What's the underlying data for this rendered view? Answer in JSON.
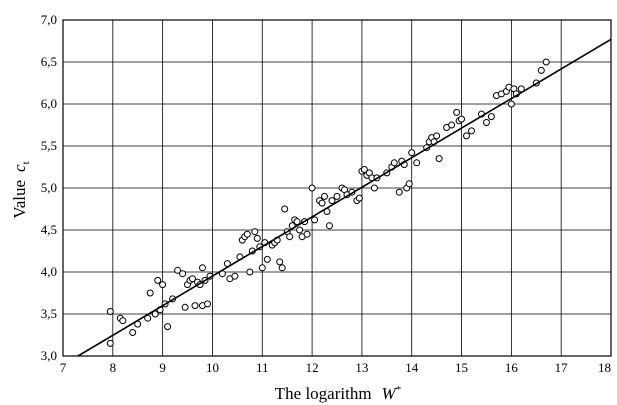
{
  "chart_data": {
    "type": "scatter",
    "title": "",
    "xlabel": "The logarithm",
    "xlabel_symbol": "W",
    "xlabel_sub": "*",
    "ylabel": "Value",
    "ylabel_symbol": "c",
    "ylabel_sub": "t",
    "xlim": [
      7,
      18
    ],
    "ylim": [
      3.0,
      7.0
    ],
    "xticks": [
      "7",
      "8",
      "9",
      "10",
      "11",
      "12",
      "13",
      "14",
      "15",
      "16",
      "17",
      "18"
    ],
    "yticks": [
      "3,0",
      "3,5",
      "4,0",
      "4,5",
      "5,0",
      "5,5",
      "6,0",
      "6,5",
      "7,0"
    ],
    "grid": true,
    "legend": "none",
    "marker": "open-circle",
    "fit_line": {
      "x": [
        7.3,
        18.0
      ],
      "y": [
        3.0,
        6.77
      ]
    },
    "series": [
      {
        "points": [
          [
            7.95,
            3.53
          ],
          [
            7.95,
            3.15
          ],
          [
            8.15,
            3.45
          ],
          [
            8.2,
            3.42
          ],
          [
            8.4,
            3.28
          ],
          [
            8.5,
            3.38
          ],
          [
            8.7,
            3.45
          ],
          [
            8.75,
            3.75
          ],
          [
            8.85,
            3.5
          ],
          [
            8.9,
            3.9
          ],
          [
            8.95,
            3.55
          ],
          [
            9.0,
            3.85
          ],
          [
            9.05,
            3.62
          ],
          [
            9.1,
            3.35
          ],
          [
            9.2,
            3.68
          ],
          [
            9.3,
            4.02
          ],
          [
            9.4,
            3.98
          ],
          [
            9.45,
            3.58
          ],
          [
            9.5,
            3.85
          ],
          [
            9.55,
            3.9
          ],
          [
            9.6,
            3.92
          ],
          [
            9.65,
            3.6
          ],
          [
            9.7,
            3.88
          ],
          [
            9.75,
            3.85
          ],
          [
            9.8,
            4.05
          ],
          [
            9.8,
            3.6
          ],
          [
            9.85,
            3.9
          ],
          [
            9.9,
            3.62
          ],
          [
            9.95,
            3.95
          ],
          [
            10.2,
            3.98
          ],
          [
            10.3,
            4.1
          ],
          [
            10.35,
            3.92
          ],
          [
            10.45,
            3.95
          ],
          [
            10.55,
            4.18
          ],
          [
            10.6,
            4.38
          ],
          [
            10.65,
            4.42
          ],
          [
            10.7,
            4.45
          ],
          [
            10.75,
            4.0
          ],
          [
            10.8,
            4.25
          ],
          [
            10.85,
            4.48
          ],
          [
            10.9,
            4.4
          ],
          [
            10.95,
            4.3
          ],
          [
            11.0,
            4.05
          ],
          [
            11.05,
            4.35
          ],
          [
            11.1,
            4.15
          ],
          [
            11.2,
            4.32
          ],
          [
            11.25,
            4.35
          ],
          [
            11.3,
            4.38
          ],
          [
            11.35,
            4.12
          ],
          [
            11.4,
            4.05
          ],
          [
            11.45,
            4.75
          ],
          [
            11.5,
            4.48
          ],
          [
            11.55,
            4.42
          ],
          [
            11.6,
            4.55
          ],
          [
            11.65,
            4.62
          ],
          [
            11.7,
            4.6
          ],
          [
            11.75,
            4.5
          ],
          [
            11.8,
            4.42
          ],
          [
            11.85,
            4.6
          ],
          [
            11.9,
            4.45
          ],
          [
            12.0,
            5.0
          ],
          [
            12.05,
            4.62
          ],
          [
            12.15,
            4.85
          ],
          [
            12.2,
            4.82
          ],
          [
            12.25,
            4.9
          ],
          [
            12.3,
            4.72
          ],
          [
            12.35,
            4.55
          ],
          [
            12.4,
            4.85
          ],
          [
            12.5,
            4.9
          ],
          [
            12.6,
            5.0
          ],
          [
            12.65,
            4.98
          ],
          [
            12.7,
            4.92
          ],
          [
            12.8,
            4.95
          ],
          [
            12.9,
            4.85
          ],
          [
            12.95,
            4.88
          ],
          [
            13.0,
            5.2
          ],
          [
            13.05,
            5.22
          ],
          [
            13.1,
            5.15
          ],
          [
            13.15,
            5.18
          ],
          [
            13.2,
            5.12
          ],
          [
            13.25,
            5.0
          ],
          [
            13.3,
            5.12
          ],
          [
            13.5,
            5.18
          ],
          [
            13.6,
            5.25
          ],
          [
            13.65,
            5.3
          ],
          [
            13.75,
            4.95
          ],
          [
            13.8,
            5.32
          ],
          [
            13.85,
            5.28
          ],
          [
            13.9,
            5.0
          ],
          [
            13.95,
            5.05
          ],
          [
            14.0,
            5.42
          ],
          [
            14.1,
            5.3
          ],
          [
            14.3,
            5.48
          ],
          [
            14.35,
            5.55
          ],
          [
            14.4,
            5.6
          ],
          [
            14.45,
            5.55
          ],
          [
            14.5,
            5.62
          ],
          [
            14.55,
            5.35
          ],
          [
            14.7,
            5.72
          ],
          [
            14.8,
            5.75
          ],
          [
            14.9,
            5.9
          ],
          [
            14.95,
            5.8
          ],
          [
            15.0,
            5.82
          ],
          [
            15.1,
            5.62
          ],
          [
            15.2,
            5.68
          ],
          [
            15.4,
            5.88
          ],
          [
            15.5,
            5.78
          ],
          [
            15.6,
            5.85
          ],
          [
            15.7,
            6.1
          ],
          [
            15.8,
            6.12
          ],
          [
            15.9,
            6.15
          ],
          [
            15.95,
            6.2
          ],
          [
            16.0,
            6.0
          ],
          [
            16.05,
            6.18
          ],
          [
            16.1,
            6.12
          ],
          [
            16.2,
            6.18
          ],
          [
            16.5,
            6.25
          ],
          [
            16.6,
            6.4
          ],
          [
            16.7,
            6.5
          ]
        ]
      }
    ]
  }
}
